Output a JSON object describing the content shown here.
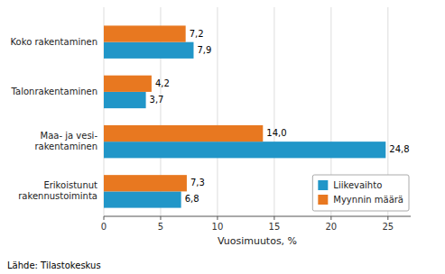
{
  "chart_data": {
    "type": "bar",
    "orientation": "horizontal",
    "categories": [
      "Koko rakentaminen",
      "Talonrakentaminen",
      "Maa- ja vesi-\nrakentaminen",
      "Erikoistunut\nrakennustoiminta"
    ],
    "series": [
      {
        "name": "Liikevaihto",
        "color": "#2196c8",
        "values": [
          7.9,
          3.7,
          24.8,
          6.8
        ],
        "value_labels": [
          "7,9",
          "3,7",
          "24,8",
          "6,8"
        ]
      },
      {
        "name": "Myynnin määrä",
        "color": "#e87820",
        "values": [
          7.2,
          4.2,
          14.0,
          7.3
        ],
        "value_labels": [
          "7,2",
          "4,2",
          "14,0",
          "7,3"
        ]
      }
    ],
    "xlabel": "Vuosimuutos, %",
    "xlim": [
      0,
      27
    ],
    "xticks": [
      0,
      5,
      10,
      15,
      20,
      25
    ],
    "grid": true,
    "legend": "lower right",
    "data_labels": true,
    "annotations": [
      "Lähde: Tilastokeskus"
    ]
  }
}
